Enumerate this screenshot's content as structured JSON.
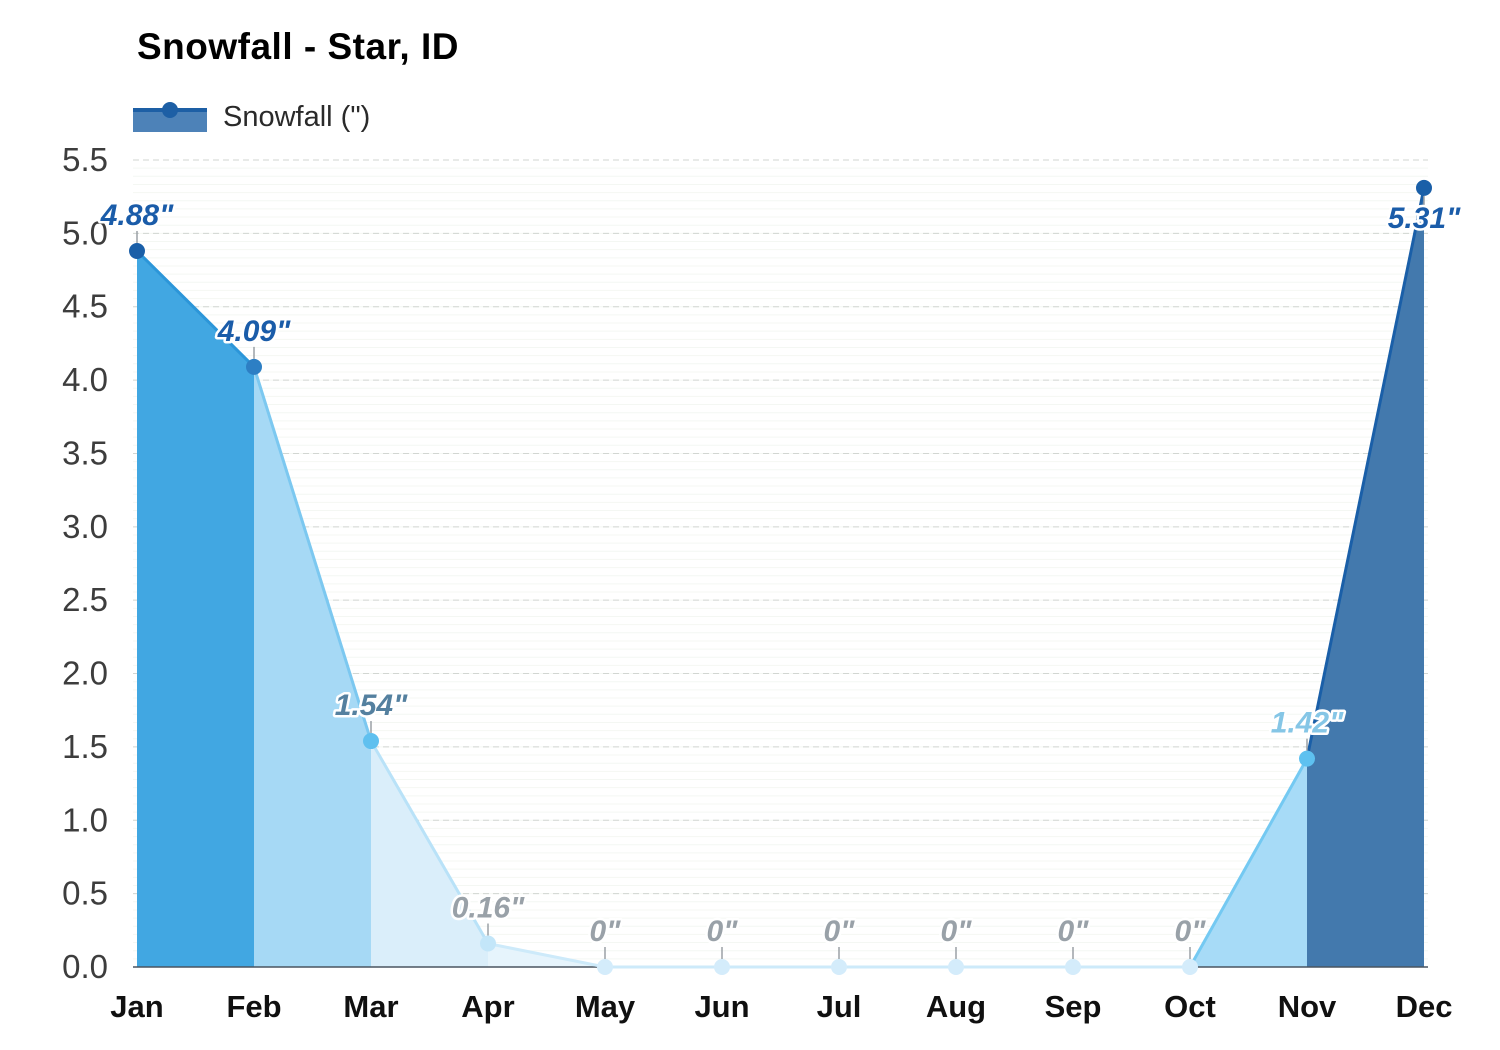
{
  "title": "Snowfall - Star, ID",
  "legend": {
    "label": "Snowfall (\")"
  },
  "chart_data": {
    "type": "area",
    "title": "Snowfall - Star, ID",
    "categories": [
      "Jan",
      "Feb",
      "Mar",
      "Apr",
      "May",
      "Jun",
      "Jul",
      "Aug",
      "Sep",
      "Oct",
      "Nov",
      "Dec"
    ],
    "series": [
      {
        "name": "Snowfall (\")",
        "values": [
          4.88,
          4.09,
          1.54,
          0.16,
          0,
          0,
          0,
          0,
          0,
          0,
          1.42,
          5.31
        ]
      }
    ],
    "point_labels": [
      "4.88\"",
      "4.09\"",
      "1.54\"",
      "0.16\"",
      "0\"",
      "0\"",
      "0\"",
      "0\"",
      "0\"",
      "0\"",
      "1.42\"",
      "5.31\""
    ],
    "xlabel": "",
    "ylabel": "",
    "ylim": [
      0,
      5.5
    ],
    "ytick_step": 0.5,
    "ytick_labels": [
      "0.0",
      "0.5",
      "1.0",
      "1.5",
      "2.0",
      "2.5",
      "3.0",
      "3.5",
      "4.0",
      "4.5",
      "5.0",
      "5.5"
    ],
    "grid": "horizontal dashed major lines every 0.5 plus faint minor stripes",
    "legend_position": "top-left",
    "styles": {
      "segment_fills": [
        "#41a7e2",
        "#a6d9f5",
        "#daeefa",
        "#e6f4fc",
        "#edf7fd",
        "#edf7fd",
        "#edf7fd",
        "#edf7fd",
        "#edf7fd",
        "#a7dbf7",
        "#4379ad"
      ],
      "segment_strokes": [
        "#2c96d9",
        "#7cc8f0",
        "#b9e2f8",
        "#cdeafa",
        "#cdeafa",
        "#cdeafa",
        "#cdeafa",
        "#cdeafa",
        "#cdeafa",
        "#74c9f2",
        "#1a5fa8"
      ],
      "marker_colors": [
        "#1a5fa8",
        "#2d7fc4",
        "#5fc0ef",
        "#c3e6f9",
        "#d4ecfb",
        "#d4ecfb",
        "#d4ecfb",
        "#d4ecfb",
        "#d4ecfb",
        "#d4ecfb",
        "#5ec1f0",
        "#1a5fa8"
      ],
      "label_colors": [
        "#1a5ca9",
        "#1a5ca9",
        "#54809f",
        "#99a1a8",
        "#99a1a8",
        "#99a1a8",
        "#99a1a8",
        "#99a1a8",
        "#99a1a8",
        "#99a1a8",
        "#85c6e6",
        "#1a5ca9"
      ],
      "axis_line_color": "#4a5560",
      "grid_major_color": "#d2d6d2",
      "grid_minor_color": "#f4f7f3",
      "leader_line_color": "#9aa0a6",
      "label_outline_color": "#ffffff",
      "tick_label_color": "#3d3d3d",
      "month_label_color": "#101010",
      "legend_swatch_fill": "#4d82b8",
      "legend_swatch_accent": "#1d5fa5",
      "title_color": "#000000",
      "legend_text_color": "#2a2a2a"
    }
  }
}
